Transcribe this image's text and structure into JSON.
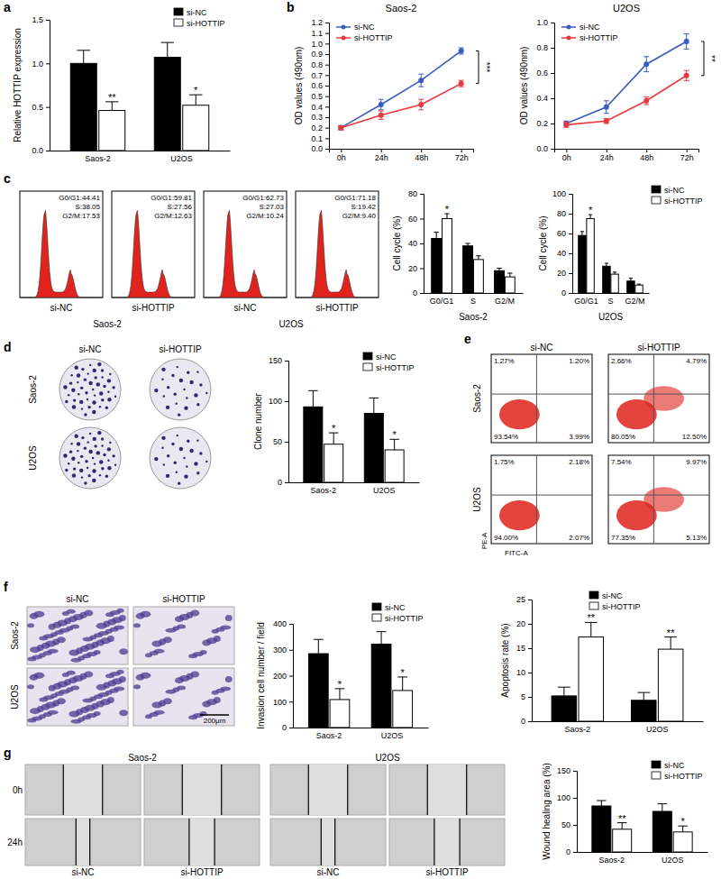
{
  "panel_labels": [
    "a",
    "b",
    "c",
    "d",
    "e",
    "f",
    "g"
  ],
  "chart_data": [
    {
      "type": "bar",
      "y_label": "Relative HOTTIP expression",
      "categories": [
        "Saos-2",
        "U2OS"
      ],
      "series": [
        {
          "name": "si-NC",
          "color": "#000000",
          "values": [
            1.0,
            1.07
          ],
          "errors": [
            0.15,
            0.17
          ]
        },
        {
          "name": "si-HOTTIP",
          "color": "#ffffff",
          "values": [
            0.46,
            0.52
          ],
          "errors": [
            0.1,
            0.12
          ],
          "significance": [
            "**",
            "*"
          ]
        }
      ],
      "ylim": [
        0,
        1.5
      ],
      "yticks": [
        {
          "value": 0,
          "label": "0.0"
        },
        0.5,
        {
          "value": 1,
          "label": "1.0"
        },
        1.5
      ],
      "legend": "top-right"
    },
    {
      "type": "line",
      "title": "Saos-2",
      "y_label": "OD values (490nm)",
      "categories": [
        "0h",
        "24h",
        "48h",
        "72h"
      ],
      "series": [
        {
          "name": "si-NC",
          "color": "#3a5bbf",
          "marker": "circle",
          "values": [
            0.2,
            0.42,
            0.65,
            0.93
          ],
          "errors": [
            0.02,
            0.05,
            0.06,
            0.03
          ]
        },
        {
          "name": "si-HOTTIP",
          "color": "#e8383d",
          "marker": "circle",
          "values": [
            0.2,
            0.32,
            0.42,
            0.62
          ],
          "errors": [
            0.02,
            0.04,
            0.05,
            0.03
          ]
        }
      ],
      "ylim": [
        0,
        1.2
      ],
      "yticks": [
        {
          "value": 0,
          "label": "0.0"
        },
        0.1,
        0.2,
        0.3,
        0.4,
        0.5,
        0.6,
        0.7,
        0.8,
        0.9,
        {
          "value": 1,
          "label": "1.0"
        },
        1.1,
        1.2
      ],
      "legend": "top-left",
      "annotation": "***"
    },
    {
      "type": "line",
      "title": "U2OS",
      "y_label": "OD values (490nm)",
      "categories": [
        "0h",
        "24h",
        "48h",
        "72h"
      ],
      "series": [
        {
          "name": "si-NC",
          "color": "#3a5bbf",
          "marker": "circle",
          "values": [
            0.2,
            0.33,
            0.67,
            0.85
          ],
          "errors": [
            0.02,
            0.05,
            0.06,
            0.06
          ]
        },
        {
          "name": "si-HOTTIP",
          "color": "#e8383d",
          "marker": "circle",
          "values": [
            0.19,
            0.22,
            0.38,
            0.58
          ],
          "errors": [
            0.02,
            0.02,
            0.03,
            0.04
          ]
        }
      ],
      "ylim": [
        0,
        1
      ],
      "yticks": [
        {
          "value": 0,
          "label": "0.0"
        },
        0.2,
        0.4,
        0.6,
        0.8,
        {
          "value": 1,
          "label": "1.0"
        }
      ],
      "legend": "top-left",
      "annotation": "**"
    },
    {
      "type": "bar",
      "y_label": "Cell cycle (%)",
      "x_label": "Saos-2",
      "categories": [
        "G0/G1",
        "S",
        "G2/M"
      ],
      "series": [
        {
          "color": "#000000",
          "values": [
            44,
            38,
            18
          ],
          "errors": [
            5,
            2,
            2
          ]
        },
        {
          "color": "#ffffff",
          "values": [
            60,
            27,
            13
          ],
          "errors": [
            4,
            3,
            3
          ],
          "significance": [
            "*",
            null,
            null
          ]
        }
      ],
      "ylim": [
        0,
        80
      ],
      "yticks": [
        0,
        20,
        40,
        60,
        80
      ]
    },
    {
      "type": "bar",
      "y_label": "Cell cycle (%)",
      "x_label": "U2OS",
      "categories": [
        "G0/G1",
        "S",
        "G2/M"
      ],
      "series": [
        {
          "name": "si-NC",
          "color": "#000000",
          "values": [
            58,
            27,
            12
          ],
          "errors": [
            4,
            3,
            3
          ]
        },
        {
          "name": "si-HOTTIP",
          "color": "#ffffff",
          "values": [
            75,
            19,
            8
          ],
          "errors": [
            4,
            2,
            1
          ],
          "significance": [
            "*",
            null,
            null
          ]
        }
      ],
      "ylim": [
        0,
        100
      ],
      "yticks": [
        0,
        20,
        40,
        60,
        80,
        100
      ],
      "legend": "top-right"
    },
    {
      "type": "bar",
      "y_label": "Clone number",
      "categories": [
        "Saos-2",
        "U2OS"
      ],
      "series": [
        {
          "name": "si-NC",
          "color": "#000000",
          "values": [
            93,
            85
          ],
          "errors": [
            20,
            19
          ]
        },
        {
          "name": "si-HOTTIP",
          "color": "#ffffff",
          "values": [
            47,
            40
          ],
          "errors": [
            14,
            13
          ],
          "significance": [
            "*",
            "*"
          ]
        }
      ],
      "ylim": [
        0,
        150
      ],
      "yticks": [
        0,
        50,
        100,
        150
      ],
      "legend": "top-right"
    },
    {
      "type": "bar",
      "y_label": "Invasion cell number / field",
      "categories": [
        "Saos-2",
        "U2OS"
      ],
      "series": [
        {
          "name": "si-NC",
          "color": "#000000",
          "values": [
            285,
            322
          ],
          "errors": [
            55,
            48
          ]
        },
        {
          "name": "si-HOTTIP",
          "color": "#ffffff",
          "values": [
            108,
            143
          ],
          "errors": [
            42,
            52
          ],
          "significance": [
            "*",
            "*"
          ]
        }
      ],
      "ylim": [
        0,
        400
      ],
      "yticks": [
        0,
        100,
        200,
        300,
        400
      ],
      "legend": "top-right"
    },
    {
      "type": "bar",
      "y_label": "Apoptosis rate (%)",
      "categories": [
        "Saos-2",
        "U2OS"
      ],
      "series": [
        {
          "name": "si-NC",
          "color": "#000000",
          "values": [
            5.2,
            4.3
          ],
          "errors": [
            1.8,
            1.6
          ]
        },
        {
          "name": "si-HOTTIP",
          "color": "#ffffff",
          "values": [
            17.3,
            14.8
          ],
          "errors": [
            3,
            2.5
          ],
          "significance": [
            "**",
            "**"
          ]
        }
      ],
      "ylim": [
        0,
        25
      ],
      "yticks": [
        0,
        5,
        10,
        15,
        20,
        25
      ],
      "legend": "top"
    },
    {
      "type": "bar",
      "y_label": "Wound healing area (%)",
      "categories": [
        "Saos-2",
        "U2OS"
      ],
      "series": [
        {
          "name": "si-NC",
          "color": "#000000",
          "values": [
            85,
            75
          ],
          "errors": [
            10,
            14
          ]
        },
        {
          "name": "si-HOTTIP",
          "color": "#ffffff",
          "values": [
            42,
            37
          ],
          "errors": [
            12,
            11
          ],
          "significance": [
            "**",
            "*"
          ]
        }
      ],
      "ylim": [
        0,
        150
      ],
      "yticks": [
        0,
        50,
        100,
        150
      ],
      "legend": "top-right"
    }
  ],
  "images": {
    "cell_cycle": {
      "groups": [
        "Saos-2",
        "U2OS"
      ],
      "samples": [
        {
          "label": "si-NC",
          "lines": [
            "G0/G1:44.41",
            "S:38.05",
            "G2/M:17.53"
          ]
        },
        {
          "label": "si-HOTTIP",
          "lines": [
            "G0/G1:59.81",
            "S:27.56",
            "G2/M:12.63"
          ]
        },
        {
          "label": "si-NC",
          "lines": [
            "G0/G1:62.73",
            "S:27.03",
            "G2/M:10.24"
          ]
        },
        {
          "label": "si-HOTTIP",
          "lines": [
            "G0/G1:71.18",
            "S:19.42",
            "G2/M:9.40"
          ]
        }
      ]
    },
    "colony": {
      "columns": [
        "si-NC",
        "si-HOTTIP"
      ],
      "rows": [
        "Saos-2",
        "U2OS"
      ]
    },
    "apoptosis": {
      "columns": [
        "si-NC",
        "si-HOTTIP"
      ],
      "rows": [
        "Saos-2",
        "U2OS"
      ],
      "quadrants": [
        [
          [
            "1.27%",
            "1.20%",
            "93.54%",
            "3.99%"
          ],
          [
            "2.66%",
            "4.79%",
            "80.05%",
            "12.50%"
          ]
        ],
        [
          [
            "1.75%",
            "2.18%",
            "94.00%",
            "2.07%"
          ],
          [
            "7.54%",
            "9.97%",
            "77.35%",
            "5.13%"
          ]
        ]
      ],
      "x_label": "FITC-A",
      "y_label": "PE-A"
    },
    "invasion": {
      "columns": [
        "si-NC",
        "si-HOTTIP"
      ],
      "rows": [
        "Saos-2",
        "U2OS"
      ],
      "scale_bar": "200μm"
    },
    "wound": {
      "groups": [
        "Saos-2",
        "U2OS"
      ],
      "rows": [
        "0h",
        "24h"
      ],
      "columns": [
        "si-NC",
        "si-HOTTIP"
      ]
    }
  }
}
